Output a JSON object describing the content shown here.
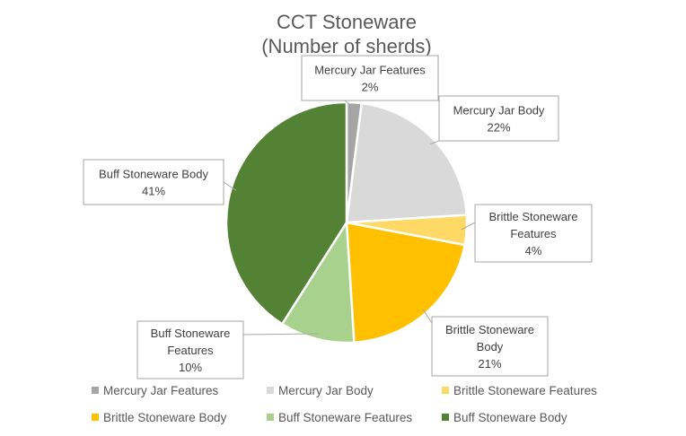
{
  "chart_data": {
    "type": "pie",
    "title": [
      "CCT Stoneware",
      "(Number of sherds)"
    ],
    "series": [
      {
        "name": "",
        "slices": [
          {
            "label": "Mercury Jar Features",
            "value": 2,
            "value_label": "2%",
            "color": "#a5a5a5",
            "callout_lines": [
              "Mercury Jar Features",
              "2%"
            ]
          },
          {
            "label": "Mercury Jar Body",
            "value": 22,
            "value_label": "22%",
            "color": "#d9d9d9",
            "callout_lines": [
              "Mercury Jar Body",
              "22%"
            ]
          },
          {
            "label": "Brittle Stoneware Features",
            "value": 4,
            "value_label": "4%",
            "color": "#ffd966",
            "callout_lines": [
              "Brittle Stoneware",
              "Features",
              "4%"
            ]
          },
          {
            "label": "Brittle Stoneware Body",
            "value": 21,
            "value_label": "21%",
            "color": "#ffc000",
            "callout_lines": [
              "Brittle Stoneware",
              "Body",
              "21%"
            ]
          },
          {
            "label": "Buff Stoneware Features",
            "value": 10,
            "value_label": "10%",
            "color": "#a9d18e",
            "callout_lines": [
              "Buff Stoneware",
              "Features",
              "10%"
            ]
          },
          {
            "label": "Buff Stoneware Body",
            "value": 41,
            "value_label": "41%",
            "color": "#548235",
            "callout_lines": [
              "Buff Stoneware Body",
              "41%"
            ]
          }
        ]
      }
    ],
    "legend_position": "bottom"
  }
}
